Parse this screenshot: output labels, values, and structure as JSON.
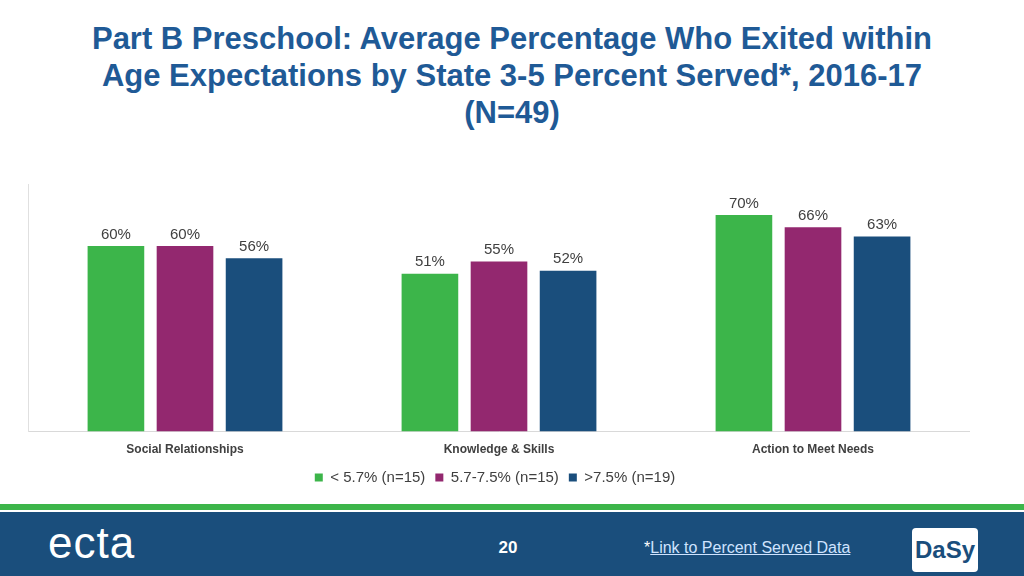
{
  "chart_data": {
    "type": "bar",
    "title": "Part B Preschool: Average Percentage Who Exited within Age Expectations by State 3-5 Percent Served*, 2016-17 (N=49)",
    "categories": [
      "Social Relationships",
      "Knowledge & Skills",
      "Action to Meet Needs"
    ],
    "series": [
      {
        "name": "< 5.7% (n=15)",
        "color": "#3cb54a",
        "values": [
          60,
          51,
          70
        ],
        "value_labels": [
          "60%",
          "51%",
          "70%"
        ]
      },
      {
        "name": "5.7-7.5% (n=15)",
        "color": "#93286f",
        "values": [
          60,
          55,
          66
        ],
        "value_labels": [
          "60%",
          "55%",
          "66%"
        ]
      },
      {
        "name": ">7.5% (n=19)",
        "color": "#1a4e7c",
        "values": [
          56,
          52,
          63
        ],
        "value_labels": [
          "56%",
          "52%",
          "63%"
        ]
      }
    ],
    "ylim": [
      0,
      80
    ],
    "grid": false,
    "legend": "bottom",
    "data_labels": true,
    "tick_labels": "x"
  },
  "footer": {
    "page_number": "20",
    "footnote_marker": "*",
    "footnote_link": "Link to Percent Served Data",
    "logos": [
      "ecta",
      "DaSy"
    ]
  }
}
